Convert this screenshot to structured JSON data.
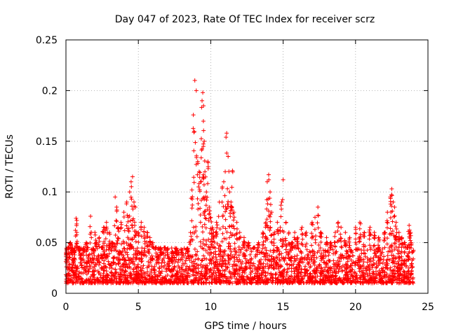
{
  "chart_data": {
    "type": "scatter",
    "title": "Day 047 of 2023, Rate Of TEC Index for receiver scrz",
    "xlabel": "GPS time / hours",
    "ylabel": "ROTI / TECUs",
    "xlim": [
      0,
      25
    ],
    "ylim": [
      0,
      0.25
    ],
    "xticks": [
      0,
      5,
      10,
      15,
      20,
      25
    ],
    "xtick_labels": [
      "0",
      "5",
      "10",
      "15",
      "20",
      "25"
    ],
    "yticks": [
      0,
      0.05,
      0.1,
      0.15,
      0.2,
      0.25
    ],
    "ytick_labels": [
      "0",
      "0.05",
      "0.1",
      "0.15",
      "0.2",
      "0.25"
    ],
    "grid": true,
    "marker": "plus",
    "color": "#ff0000",
    "series": [
      {
        "name": "ROTI",
        "x": [
          0.05,
          0.15,
          0.2,
          0.3,
          0.4,
          0.5,
          0.6,
          0.7,
          0.75,
          0.9,
          1.0,
          1.2,
          1.4,
          1.5,
          1.7,
          1.9,
          2.0,
          2.1,
          2.3,
          2.5,
          2.6,
          2.8,
          3.0,
          3.2,
          3.4,
          3.5,
          3.6,
          3.8,
          4.0,
          4.2,
          4.3,
          4.4,
          4.5,
          4.6,
          4.7,
          4.8,
          5.0,
          5.2,
          5.4,
          5.6,
          5.8,
          6.0,
          6.2,
          6.5,
          6.8,
          7.0,
          7.3,
          7.6,
          8.0,
          8.4,
          8.6,
          8.7,
          8.8,
          8.9,
          9.0,
          9.1,
          9.2,
          9.3,
          9.4,
          9.45,
          9.5,
          9.55,
          9.6,
          9.7,
          9.8,
          9.9,
          10.0,
          10.1,
          10.2,
          10.4,
          10.6,
          10.8,
          10.9,
          11.0,
          11.1,
          11.2,
          11.3,
          11.4,
          11.5,
          11.6,
          11.8,
          12.0,
          12.3,
          12.6,
          13.0,
          13.3,
          13.6,
          13.8,
          13.9,
          14.0,
          14.1,
          14.2,
          14.4,
          14.6,
          14.8,
          14.9,
          15.0,
          15.2,
          15.4,
          15.6,
          15.8,
          16.0,
          16.3,
          16.6,
          17.0,
          17.2,
          17.4,
          17.6,
          18.0,
          18.3,
          18.6,
          18.8,
          19.0,
          19.3,
          19.6,
          20.0,
          20.3,
          20.6,
          21.0,
          21.3,
          21.6,
          22.0,
          22.2,
          22.4,
          22.5,
          22.6,
          22.7,
          22.8,
          23.0,
          23.2,
          23.4,
          23.6,
          23.7,
          23.8
        ],
        "y": [
          0.03,
          0.045,
          0.035,
          0.05,
          0.04,
          0.03,
          0.038,
          0.074,
          0.06,
          0.042,
          0.035,
          0.04,
          0.05,
          0.045,
          0.076,
          0.04,
          0.06,
          0.05,
          0.055,
          0.045,
          0.065,
          0.07,
          0.06,
          0.05,
          0.095,
          0.085,
          0.065,
          0.07,
          0.08,
          0.09,
          0.075,
          0.1,
          0.11,
          0.115,
          0.09,
          0.085,
          0.06,
          0.07,
          0.065,
          0.06,
          0.055,
          0.05,
          0.045,
          0.04,
          0.045,
          0.04,
          0.035,
          0.04,
          0.035,
          0.04,
          0.06,
          0.102,
          0.176,
          0.21,
          0.2,
          0.13,
          0.12,
          0.11,
          0.19,
          0.198,
          0.185,
          0.15,
          0.12,
          0.1,
          0.13,
          0.085,
          0.075,
          0.065,
          0.06,
          0.07,
          0.09,
          0.105,
          0.11,
          0.12,
          0.158,
          0.135,
          0.1,
          0.09,
          0.121,
          0.08,
          0.07,
          0.06,
          0.055,
          0.05,
          0.045,
          0.05,
          0.06,
          0.07,
          0.11,
          0.117,
          0.1,
          0.08,
          0.06,
          0.07,
          0.065,
          0.09,
          0.112,
          0.07,
          0.06,
          0.05,
          0.06,
          0.055,
          0.065,
          0.06,
          0.07,
          0.075,
          0.085,
          0.06,
          0.055,
          0.05,
          0.06,
          0.07,
          0.065,
          0.06,
          0.055,
          0.065,
          0.07,
          0.06,
          0.065,
          0.06,
          0.055,
          0.06,
          0.08,
          0.095,
          0.103,
          0.09,
          0.085,
          0.07,
          0.06,
          0.055,
          0.05,
          0.045,
          0.067,
          0.06
        ],
        "baseline_band": [
          0.01,
          0.045
        ]
      }
    ]
  }
}
